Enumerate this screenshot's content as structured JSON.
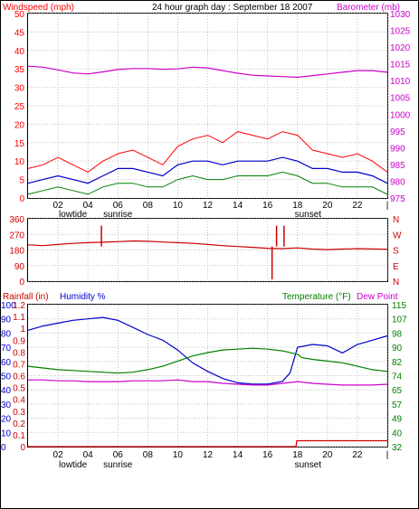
{
  "colors": {
    "wind": "#ff0000",
    "gust": "#ff0000",
    "avg_wind": "#0000cc",
    "barometer": "#cc00cc",
    "direction": "#cc0000",
    "humidity": "#0000cc",
    "temperature": "#008000",
    "dewpoint": "#cc00cc",
    "rainfall": "#cc0000",
    "grid": "#c0c0c0",
    "frame": "#000000"
  },
  "header": {
    "wind_label": "Windspeed (mph)",
    "title": "24 hour graph day : September 18 2007",
    "baro_label": "Barometer (mb)"
  },
  "time_axis": {
    "ticks": [
      "02",
      "04",
      "06",
      "08",
      "10",
      "12",
      "14",
      "16",
      "18",
      "20",
      "22",
      "|"
    ],
    "sub_labels": [
      {
        "text": "lowtide",
        "at_hour": 3.0
      },
      {
        "text": "sunrise",
        "at_hour": 6.0
      },
      {
        "text": "sunset",
        "at_hour": 18.7
      }
    ]
  },
  "chart_data": [
    {
      "type": "line",
      "id": "wind-baro",
      "x_range_hours": [
        0,
        24
      ],
      "left_axis": {
        "label": "Windspeed (mph)",
        "range": [
          0,
          50
        ],
        "ticks": [
          0,
          5,
          10,
          15,
          20,
          25,
          30,
          35,
          40,
          45,
          50
        ]
      },
      "right_axis": {
        "label": "Barometer (mb)",
        "range": [
          975,
          1030
        ],
        "ticks": [
          975,
          980,
          985,
          990,
          995,
          1000,
          1005,
          1010,
          1015,
          1020,
          1025,
          1030
        ]
      },
      "grid": true,
      "series": [
        {
          "key": "gust",
          "axis": "left",
          "x": [
            0,
            1,
            2,
            3,
            4,
            5,
            6,
            7,
            8,
            9,
            10,
            11,
            12,
            13,
            14,
            15,
            16,
            17,
            18,
            19,
            20,
            21,
            22,
            23,
            24
          ],
          "values": [
            8,
            9,
            11,
            9,
            7,
            10,
            12,
            13,
            11,
            9,
            14,
            16,
            17,
            15,
            18,
            17,
            16,
            18,
            17,
            13,
            12,
            11,
            12,
            10,
            7
          ]
        },
        {
          "key": "avg_wind",
          "axis": "left",
          "x": [
            0,
            1,
            2,
            3,
            4,
            5,
            6,
            7,
            8,
            9,
            10,
            11,
            12,
            13,
            14,
            15,
            16,
            17,
            18,
            19,
            20,
            21,
            22,
            23,
            24
          ],
          "values": [
            4,
            5,
            6,
            5,
            4,
            6,
            8,
            8,
            7,
            6,
            9,
            10,
            10,
            9,
            10,
            10,
            10,
            11,
            10,
            8,
            8,
            7,
            7,
            6,
            4
          ]
        },
        {
          "key": "min_wind",
          "axis": "left",
          "x": [
            0,
            1,
            2,
            3,
            4,
            5,
            6,
            7,
            8,
            9,
            10,
            11,
            12,
            13,
            14,
            15,
            16,
            17,
            18,
            19,
            20,
            21,
            22,
            23,
            24
          ],
          "values": [
            1,
            2,
            3,
            2,
            1,
            3,
            4,
            4,
            3,
            3,
            5,
            6,
            5,
            5,
            6,
            6,
            6,
            7,
            6,
            4,
            4,
            3,
            3,
            3,
            1
          ]
        },
        {
          "key": "barometer",
          "axis": "right",
          "x": [
            0,
            1,
            2,
            3,
            4,
            5,
            6,
            7,
            8,
            9,
            10,
            11,
            12,
            13,
            14,
            15,
            16,
            17,
            18,
            19,
            20,
            21,
            22,
            23,
            24
          ],
          "values": [
            1014.3,
            1014.0,
            1013.2,
            1012.3,
            1012.0,
            1012.6,
            1013.3,
            1013.6,
            1013.6,
            1013.4,
            1013.5,
            1014.0,
            1013.8,
            1013.0,
            1012.2,
            1011.6,
            1011.4,
            1011.2,
            1011.0,
            1011.5,
            1012.0,
            1012.5,
            1013.0,
            1013.0,
            1012.5
          ]
        }
      ]
    },
    {
      "type": "line",
      "id": "direction",
      "x_range_hours": [
        0,
        24
      ],
      "left_axis": {
        "range": [
          0,
          360
        ],
        "ticks": [
          0,
          90,
          180,
          270,
          360
        ]
      },
      "right_axis": {
        "range": [
          0,
          360
        ],
        "ticks": [
          "N",
          "E",
          "S",
          "W",
          "N"
        ]
      },
      "grid": true,
      "series": [
        {
          "key": "direction",
          "axis": "left",
          "x": [
            0,
            1,
            2,
            3,
            4,
            5,
            6,
            7,
            8,
            9,
            10,
            11,
            12,
            13,
            14,
            15,
            16,
            17,
            18,
            19,
            20,
            21,
            22,
            23,
            24
          ],
          "values": [
            210,
            205,
            212,
            218,
            222,
            225,
            228,
            232,
            230,
            226,
            222,
            218,
            212,
            205,
            200,
            195,
            190,
            188,
            192,
            185,
            182,
            185,
            188,
            186,
            184
          ]
        }
      ],
      "spikes": [
        {
          "hour": 4.9,
          "value": 320
        },
        {
          "hour": 16.3,
          "value": 10
        },
        {
          "hour": 16.6,
          "value": 320
        },
        {
          "hour": 17.1,
          "value": 320
        }
      ]
    },
    {
      "type": "line",
      "id": "temp-humidity",
      "x_range_hours": [
        0,
        24
      ],
      "header_labels": {
        "rainfall": "Rainfall (in)",
        "humidity": "Humidity %",
        "temperature": "Temperature (°F)",
        "dewpoint": "Dew Point"
      },
      "rain_axis": {
        "range": [
          0,
          1.2
        ],
        "ticks": [
          "0",
          "0.1",
          "0.2",
          "0.3",
          "0.4",
          "0.5",
          "0.6",
          "0.7",
          "0.8",
          "0.9",
          "1",
          "1.1",
          "1.2"
        ]
      },
      "humidity_axis": {
        "range": [
          0,
          100
        ],
        "ticks": [
          0,
          10,
          20,
          30,
          40,
          50,
          60,
          70,
          80,
          90,
          100
        ]
      },
      "temperature_axis": {
        "range": [
          32,
          115
        ],
        "ticks": [
          32,
          40,
          49,
          57,
          65,
          74,
          82,
          90,
          98,
          107,
          115
        ]
      },
      "grid": true,
      "series": [
        {
          "key": "humidity",
          "axis": "humidity",
          "x": [
            0,
            1,
            2,
            3,
            4,
            5,
            6,
            7,
            8,
            9,
            10,
            11,
            12,
            13,
            14,
            15,
            16,
            17,
            17.5,
            18,
            19,
            20,
            21,
            22,
            23,
            24
          ],
          "values": [
            82,
            85,
            87,
            89,
            90,
            91,
            89,
            84,
            79,
            75,
            68,
            59,
            53,
            48,
            45,
            44,
            44,
            46,
            52,
            70,
            72,
            71,
            66,
            72,
            75,
            78
          ]
        },
        {
          "key": "temperature",
          "axis": "temperature",
          "x": [
            0,
            1,
            2,
            3,
            4,
            5,
            6,
            7,
            8,
            9,
            10,
            11,
            12,
            13,
            14,
            15,
            16,
            17,
            18,
            18.3,
            19,
            20,
            21,
            22,
            23,
            24
          ],
          "values": [
            79,
            78,
            77,
            76.5,
            76,
            75.5,
            75,
            75.5,
            77,
            79,
            82,
            85,
            87,
            88.5,
            89,
            89.5,
            89,
            88,
            86,
            84,
            83,
            82,
            81,
            79,
            77,
            76
          ]
        },
        {
          "key": "dewpoint",
          "axis": "temperature",
          "x": [
            0,
            1,
            2,
            3,
            4,
            5,
            6,
            7,
            8,
            9,
            10,
            11,
            12,
            13,
            14,
            15,
            16,
            17,
            18,
            19,
            20,
            21,
            22,
            23,
            24
          ],
          "values": [
            71,
            71,
            70.5,
            70.5,
            70,
            70,
            70,
            70.5,
            70.5,
            70.5,
            71,
            70,
            70,
            69,
            68.5,
            68,
            68,
            69,
            70,
            69,
            68.5,
            68,
            68,
            68,
            68.5
          ]
        },
        {
          "key": "rainfall",
          "axis": "rain",
          "x": [
            0,
            17.9,
            17.95,
            24
          ],
          "values": [
            0,
            0,
            0.05,
            0.05
          ]
        }
      ]
    }
  ]
}
